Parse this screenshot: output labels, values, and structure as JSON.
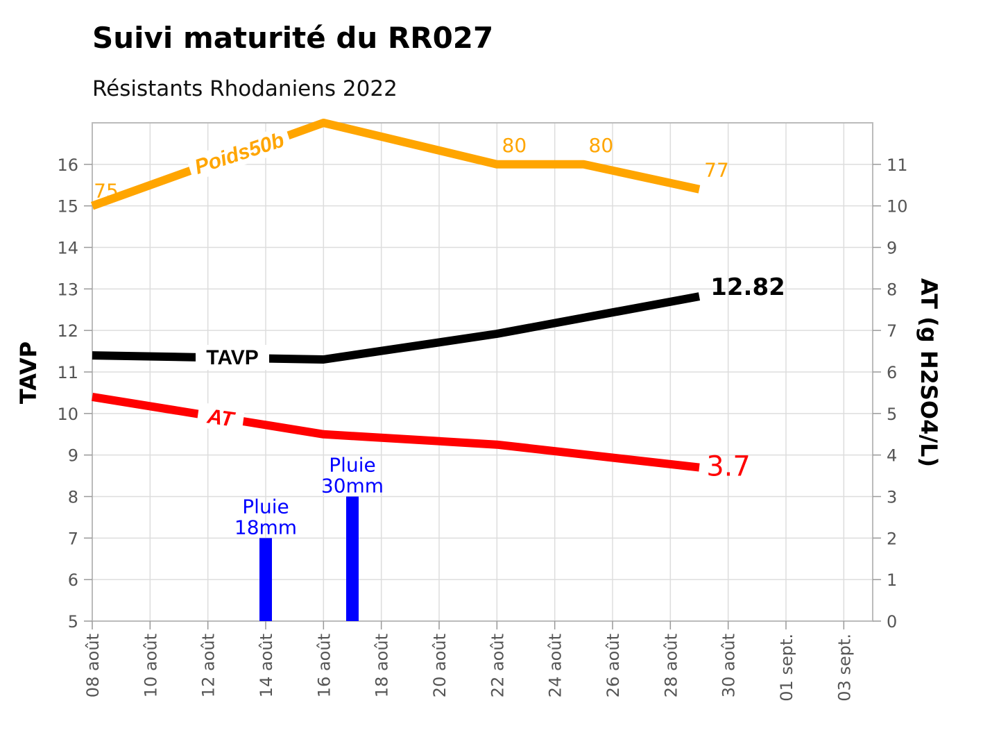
{
  "title": "Suivi maturité du RR027",
  "subtitle": "Résistants Rhodaniens 2022",
  "colors": {
    "tavp": "#000000",
    "at": "#ff0000",
    "poids": "#ffa500",
    "pluie": "#0000ff",
    "grid": "#dddddd",
    "frame": "#bbbbbb"
  },
  "chart_data": {
    "type": "line",
    "ylabel_left": "TAVP",
    "ylabel_right": "AT (g H2SO4/L)",
    "ylim_left": [
      5,
      17
    ],
    "ylim_right": [
      0,
      12
    ],
    "yticks_left": [
      5,
      6,
      7,
      8,
      9,
      10,
      11,
      12,
      13,
      14,
      15,
      16
    ],
    "yticks_right": [
      0,
      1,
      2,
      3,
      4,
      5,
      6,
      7,
      8,
      9,
      10,
      11
    ],
    "xlim": [
      "2022-08-08",
      "2022-09-04"
    ],
    "xticks": [
      {
        "date": "2022-08-08",
        "label": "08 août"
      },
      {
        "date": "2022-08-10",
        "label": "10 août"
      },
      {
        "date": "2022-08-12",
        "label": "12 août"
      },
      {
        "date": "2022-08-14",
        "label": "14 août"
      },
      {
        "date": "2022-08-16",
        "label": "16 août"
      },
      {
        "date": "2022-08-18",
        "label": "18 août"
      },
      {
        "date": "2022-08-20",
        "label": "20 août"
      },
      {
        "date": "2022-08-22",
        "label": "22 août"
      },
      {
        "date": "2022-08-24",
        "label": "24 août"
      },
      {
        "date": "2022-08-26",
        "label": "26 août"
      },
      {
        "date": "2022-08-28",
        "label": "28 août"
      },
      {
        "date": "2022-08-30",
        "label": "30 août"
      },
      {
        "date": "2022-09-01",
        "label": "01 sept."
      },
      {
        "date": "2022-09-03",
        "label": "03 sept."
      }
    ],
    "grid": true,
    "series": [
      {
        "name": "Poids50b",
        "axis": "left",
        "color": "#ffa500",
        "points": [
          {
            "x": "2022-08-08",
            "y": 15.0
          },
          {
            "x": "2022-08-16",
            "y": 17.0
          },
          {
            "x": "2022-08-22",
            "y": 16.0
          },
          {
            "x": "2022-08-25",
            "y": 16.0
          },
          {
            "x": "2022-08-29",
            "y": 15.4
          }
        ],
        "point_labels": [
          "75",
          "",
          "80",
          "80",
          "77"
        ]
      },
      {
        "name": "TAVP",
        "axis": "left",
        "color": "#000000",
        "points": [
          {
            "x": "2022-08-08",
            "y": 11.4
          },
          {
            "x": "2022-08-12",
            "y": 11.35
          },
          {
            "x": "2022-08-16",
            "y": 11.3
          },
          {
            "x": "2022-08-22",
            "y": 11.92
          },
          {
            "x": "2022-08-29",
            "y": 12.82
          }
        ],
        "end_label": "12.82"
      },
      {
        "name": "AT",
        "axis": "right",
        "color": "#ff0000",
        "points": [
          {
            "x": "2022-08-08",
            "y": 5.4
          },
          {
            "x": "2022-08-16",
            "y": 4.5
          },
          {
            "x": "2022-08-22",
            "y": 4.25
          },
          {
            "x": "2022-08-29",
            "y": 3.7
          }
        ],
        "end_label": "3.7"
      }
    ],
    "bars": [
      {
        "x": "2022-08-14",
        "y": 7,
        "label1": "Pluie",
        "label2": "18mm"
      },
      {
        "x": "2022-08-17",
        "y": 8,
        "label1": "Pluie",
        "label2": "30mm"
      }
    ]
  }
}
